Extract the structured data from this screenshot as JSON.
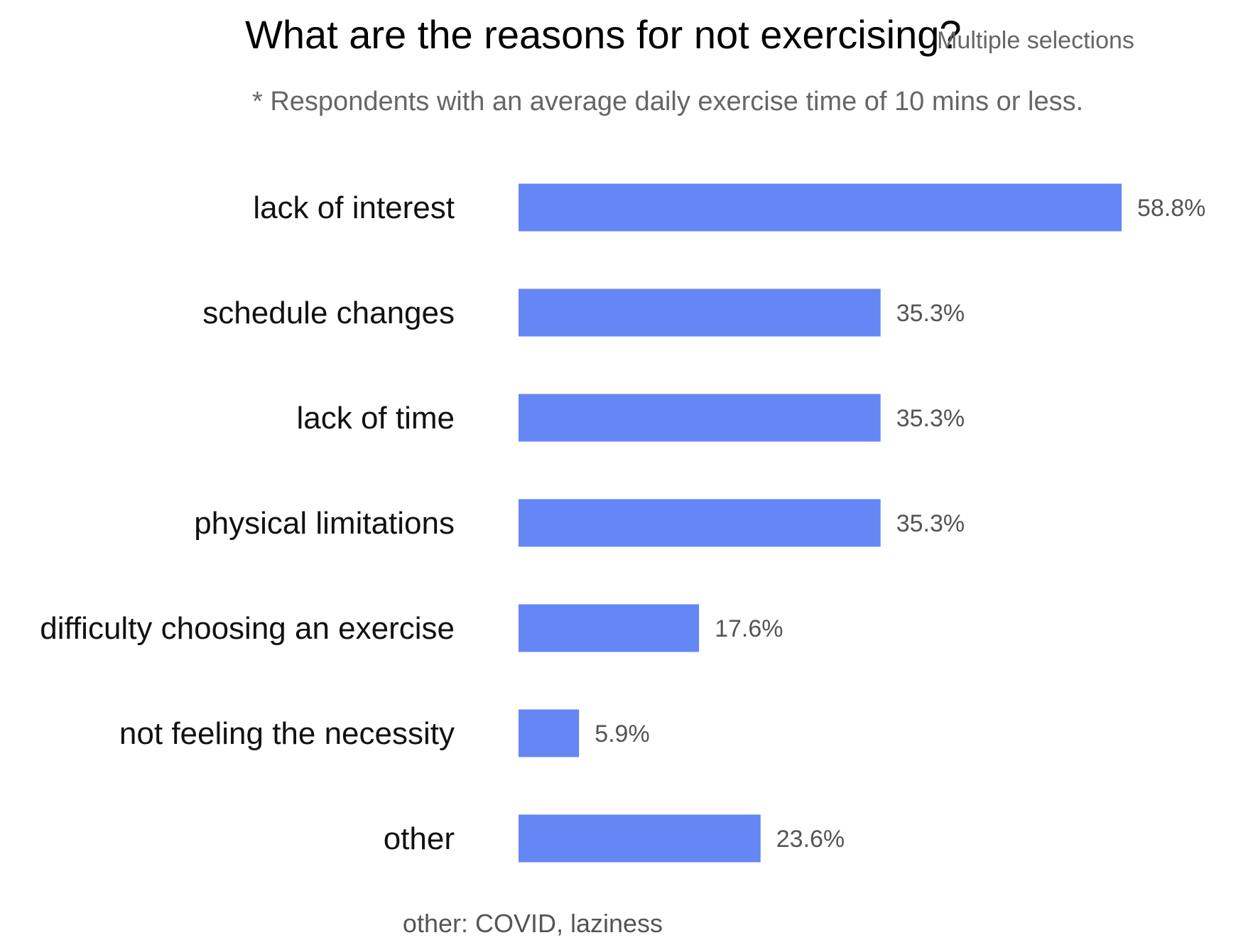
{
  "chart_data": {
    "type": "bar",
    "orientation": "horizontal",
    "title": "What are the reasons for not exercising?",
    "title_note": "Multiple selections",
    "subtitle": "* Respondents with an average daily exercise time of 10 mins or less.",
    "footnote": "other: COVID, laziness",
    "categories": [
      "lack of interest",
      "schedule changes",
      "lack of time",
      "physical limitations",
      "difficulty choosing an exercise",
      "not feeling the necessity",
      "other"
    ],
    "values": [
      58.8,
      35.3,
      35.3,
      35.3,
      17.6,
      5.9,
      23.6
    ],
    "value_labels": [
      "58.8%",
      "35.3%",
      "35.3%",
      "35.3%",
      "17.6%",
      "5.9%",
      "23.6%"
    ],
    "unit": "%",
    "xlim": [
      0,
      58.8
    ],
    "grid": false,
    "legend": "none",
    "bar_color": "#6586F5"
  }
}
